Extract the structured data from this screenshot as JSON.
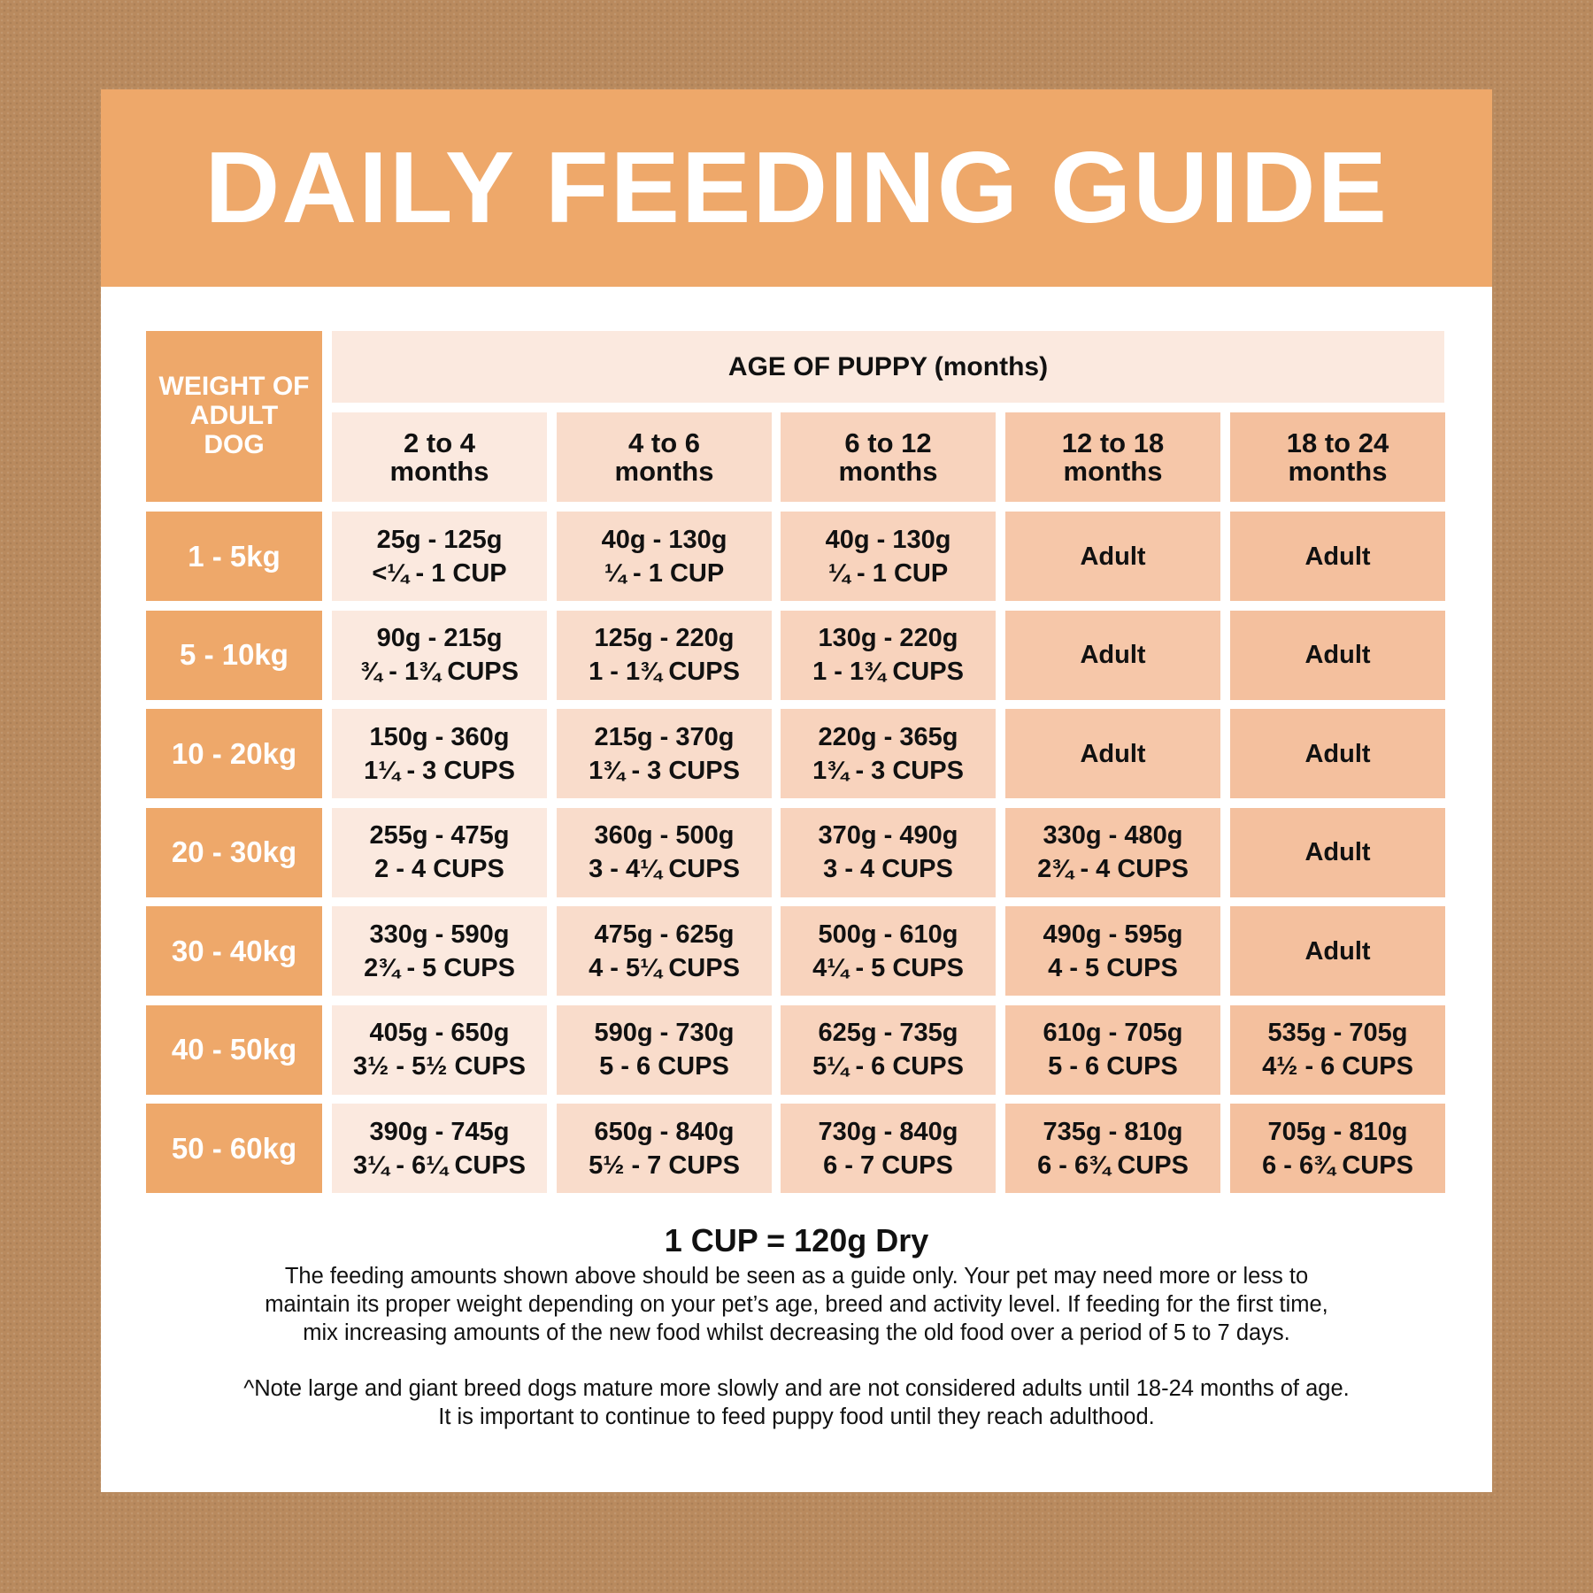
{
  "title": "DAILY FEEDING GUIDE",
  "table": {
    "weight_header": "WEIGHT OF ADULT DOG",
    "age_header": "AGE OF PUPPY (months)",
    "columns": [
      {
        "line1": "2 to 4",
        "line2": "months"
      },
      {
        "line1": "4 to 6",
        "line2": "months"
      },
      {
        "line1": "6 to 12",
        "line2": "months"
      },
      {
        "line1": "12 to 18",
        "line2": "months"
      },
      {
        "line1": "18 to 24",
        "line2": "months"
      }
    ],
    "rows": [
      {
        "weight": "1 - 5kg",
        "cells": [
          [
            "25g - 125g",
            "<¼ - 1 CUP"
          ],
          [
            "40g - 130g",
            "¼ - 1 CUP"
          ],
          [
            "40g - 130g",
            "¼ - 1 CUP"
          ],
          [
            "Adult"
          ],
          [
            "Adult"
          ]
        ]
      },
      {
        "weight": "5 - 10kg",
        "cells": [
          [
            "90g - 215g",
            "¾ - 1¾ CUPS"
          ],
          [
            "125g - 220g",
            "1 - 1¾ CUPS"
          ],
          [
            "130g - 220g",
            "1 - 1¾ CUPS"
          ],
          [
            "Adult"
          ],
          [
            "Adult"
          ]
        ]
      },
      {
        "weight": "10 - 20kg",
        "cells": [
          [
            "150g - 360g",
            "1¼ - 3 CUPS"
          ],
          [
            "215g - 370g",
            "1¾ - 3 CUPS"
          ],
          [
            "220g - 365g",
            "1¾ - 3 CUPS"
          ],
          [
            "Adult"
          ],
          [
            "Adult"
          ]
        ]
      },
      {
        "weight": "20 - 30kg",
        "cells": [
          [
            "255g - 475g",
            "2 - 4 CUPS"
          ],
          [
            "360g - 500g",
            "3 - 4¼ CUPS"
          ],
          [
            "370g - 490g",
            "3 - 4 CUPS"
          ],
          [
            "330g - 480g",
            "2¾ - 4 CUPS"
          ],
          [
            "Adult"
          ]
        ]
      },
      {
        "weight": "30 - 40kg",
        "cells": [
          [
            "330g - 590g",
            "2¾ - 5 CUPS"
          ],
          [
            "475g - 625g",
            "4 - 5¼ CUPS"
          ],
          [
            "500g - 610g",
            "4¼ - 5 CUPS"
          ],
          [
            "490g - 595g",
            "4 - 5 CUPS"
          ],
          [
            "Adult"
          ]
        ]
      },
      {
        "weight": "40 - 50kg",
        "cells": [
          [
            "405g - 650g",
            "3½ - 5½ CUPS"
          ],
          [
            "590g - 730g",
            "5 - 6 CUPS"
          ],
          [
            "625g - 735g",
            "5¼ - 6 CUPS"
          ],
          [
            "610g - 705g",
            "5 - 6 CUPS"
          ],
          [
            "535g - 705g",
            "4½ - 6 CUPS"
          ]
        ]
      },
      {
        "weight": "50 - 60kg",
        "cells": [
          [
            "390g - 745g",
            "3¼ - 6¼ CUPS"
          ],
          [
            "650g - 840g",
            "5½ - 7 CUPS"
          ],
          [
            "730g - 840g",
            "6 - 7 CUPS"
          ],
          [
            "735g - 810g",
            "6 - 6¾ CUPS"
          ],
          [
            "705g - 810g",
            "6 - 6¾ CUPS"
          ]
        ]
      }
    ]
  },
  "notes": {
    "cup_equivalence": "1 CUP = 120g Dry",
    "guide_lines": [
      "The feeding amounts shown above should be seen as a guide only. Your pet may need more or less to",
      "maintain its proper weight depending on your pet’s age, breed and activity level. If feeding for the first time,",
      "mix increasing amounts of the new food whilst decreasing the old food over a period of 5 to 7 days."
    ],
    "large_breed_lines": [
      "^Note large and giant breed dogs mature more slowly and are not considered adults until 18-24 months of age.",
      "It is important to continue to feed puppy food until they reach adulthood."
    ]
  },
  "colors": {
    "background": "#b98a5e",
    "accent": "#eea86a",
    "age_header": "#fbe9df",
    "column_shades": [
      "#fbe9df",
      "#f9dccb",
      "#f8d3bd",
      "#f6c7a9",
      "#f4c09e"
    ]
  }
}
